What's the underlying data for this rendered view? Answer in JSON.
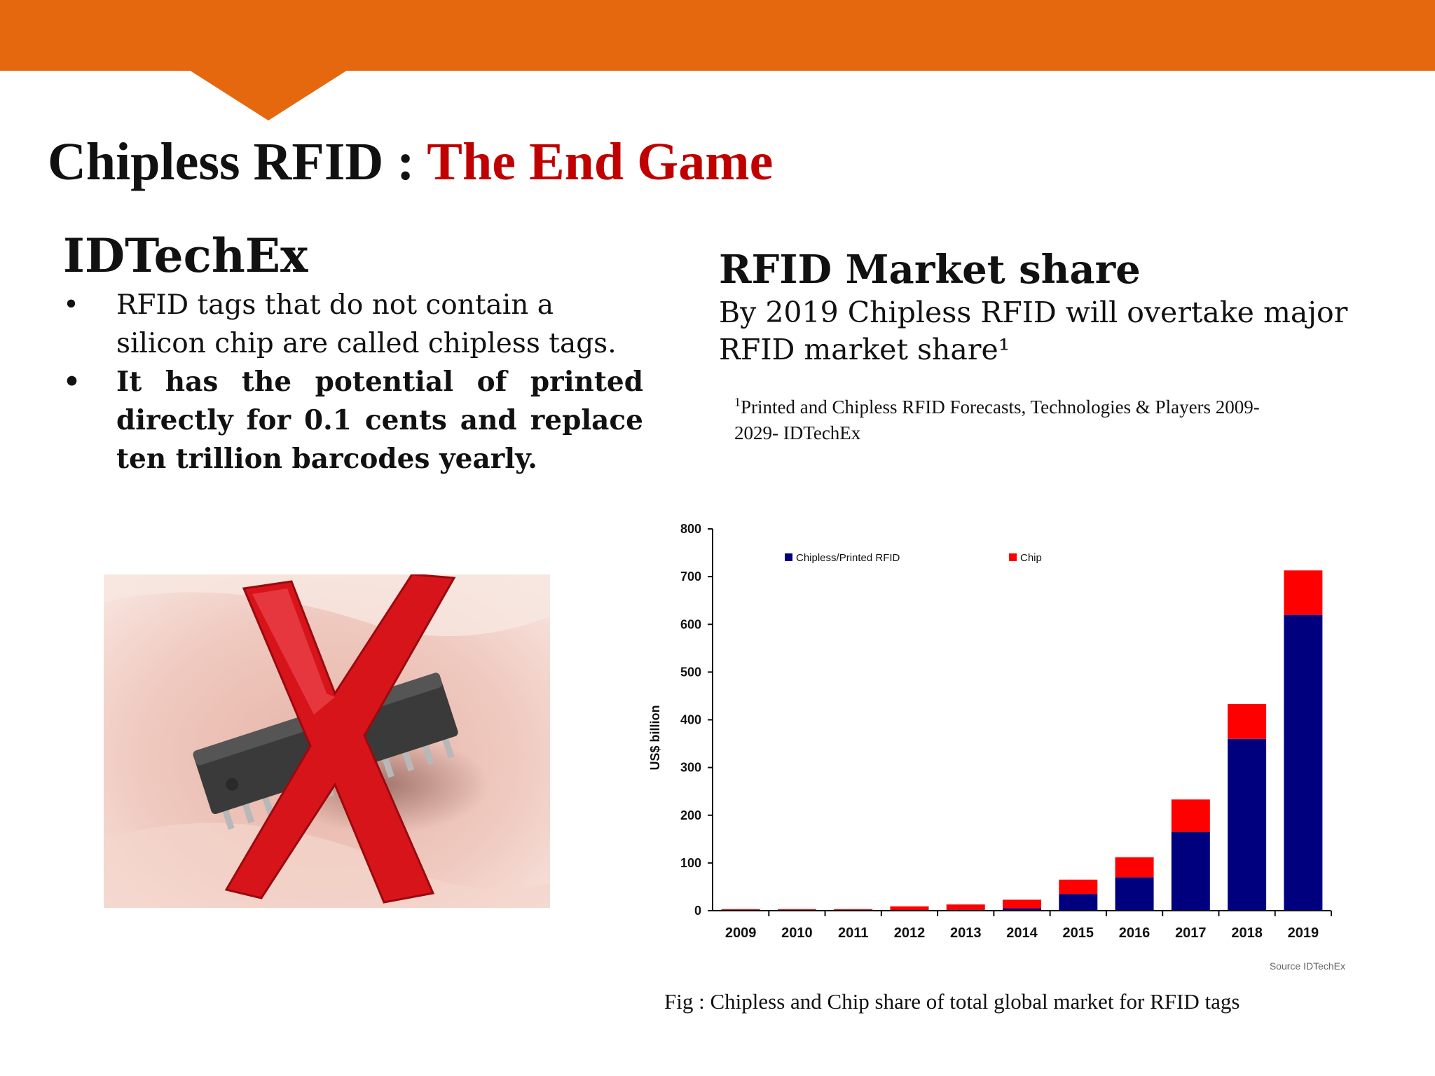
{
  "slide": {
    "title_part1": "Chipless RFID : ",
    "title_part2": "The End Game",
    "accent_color": "#c00000",
    "band_color": "#e5680f"
  },
  "left": {
    "heading": "IDTechEx",
    "bullet_char": "•",
    "bullets": [
      "RFID tags that do not contain a silicon chip are called chipless tags.",
      "It has the potential of printed directly for 0.1 cents and replace ten trillion barcodes yearly."
    ]
  },
  "right": {
    "heading": "RFID Market share",
    "subtitle": "By 2019 Chipless RFID will overtake major RFID market share¹",
    "footnote_mark": "1",
    "footnote_text": "Printed and Chipless RFID Forecasts, Technologies & Players 2009-2029- IDTechEx"
  },
  "image": {
    "icon": "crossed-out-chip-icon",
    "cross_color": "#d8141b"
  },
  "chart_data": {
    "type": "bar",
    "stacked": true,
    "categories": [
      "2009",
      "2010",
      "2011",
      "2012",
      "2013",
      "2014",
      "2015",
      "2016",
      "2017",
      "2018",
      "2019"
    ],
    "series": [
      {
        "name": "Chipless/Printed RFID",
        "color": "#00007f",
        "values": [
          0,
          0,
          0,
          1,
          2,
          5,
          35,
          70,
          165,
          360,
          620
        ]
      },
      {
        "name": "Chip",
        "color": "#ff0000",
        "values": [
          3,
          3,
          3,
          8,
          11,
          18,
          30,
          42,
          68,
          73,
          93
        ]
      }
    ],
    "ylabel": "US$ billion",
    "ylim": [
      0,
      800
    ],
    "yticks": [
      0,
      100,
      200,
      300,
      400,
      500,
      600,
      700,
      800
    ],
    "legend": "top",
    "grid": false,
    "source": "Source IDTechEx"
  },
  "caption": "Fig : Chipless and Chip share of total global market for RFID tags"
}
